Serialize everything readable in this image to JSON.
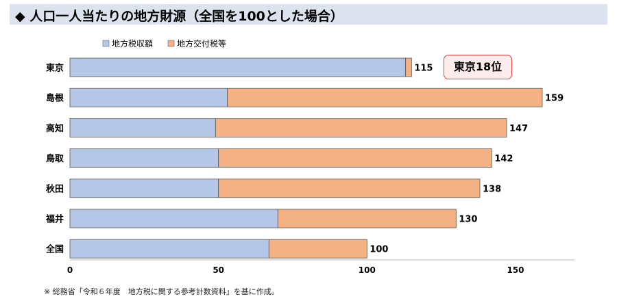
{
  "title": "◆ 人口一人当たりの地方財源（全国を100とした場合）",
  "note": "※ 総務省「令和６年度　地方税に関する参考計数資料」を基に作成。",
  "callout": "東京18位",
  "colors": {
    "title_bg": "#dce3ee",
    "local_tax": "#b4c7e7",
    "grant": "#f4b183",
    "callout_border": "#e04040",
    "callout_bg": "#fdecec"
  },
  "chart_data": {
    "type": "bar",
    "orientation": "horizontal",
    "stacked": true,
    "categories": [
      "東京",
      "島根",
      "高知",
      "鳥取",
      "秋田",
      "福井",
      "全国"
    ],
    "series": [
      {
        "name": "地方税収額",
        "values": [
          113,
          53,
          49,
          50,
          50,
          70,
          67
        ]
      },
      {
        "name": "地方交付税等",
        "values": [
          2,
          106,
          98,
          92,
          88,
          60,
          33
        ]
      }
    ],
    "totals": [
      115,
      159,
      147,
      142,
      138,
      130,
      100
    ],
    "xlim": [
      0,
      170
    ],
    "xticks": [
      0,
      50,
      100,
      150
    ],
    "legend_position": "top-left",
    "grid": false
  }
}
